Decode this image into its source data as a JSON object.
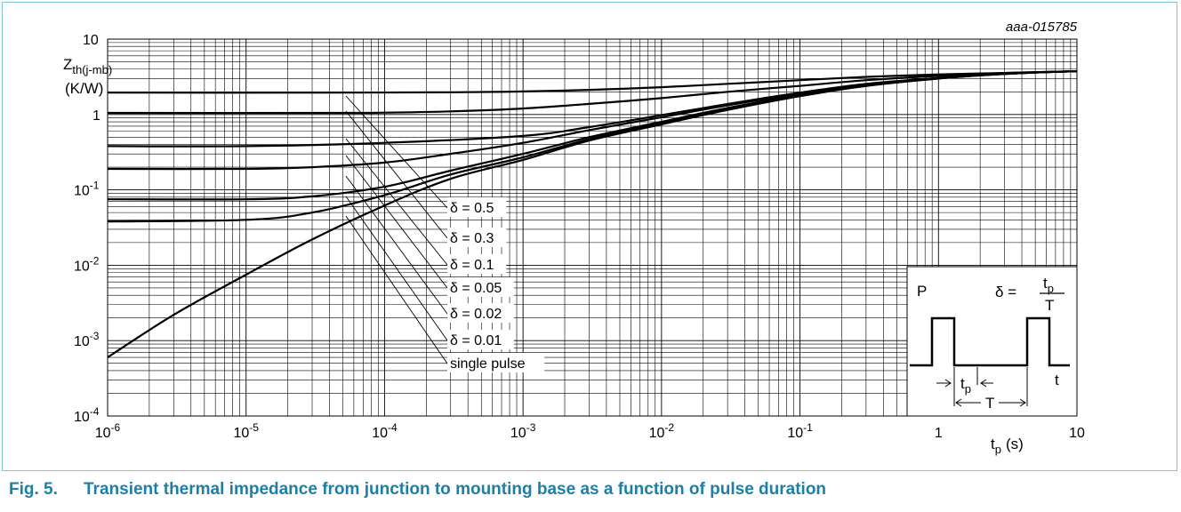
{
  "caption": {
    "figure_number": "Fig. 5.",
    "text": "Transient thermal impedance from junction to mounting base as a function of pulse duration"
  },
  "chart_data": {
    "type": "line",
    "code": "aaa-015785",
    "ylabel_main": "Z",
    "ylabel_sub": "th(j-mb)",
    "ylabel_unit": "(K/W)",
    "xlabel_main": "t",
    "xlabel_sub": "p",
    "xlabel_unit": "(s)",
    "x_scale": "log",
    "y_scale": "log",
    "xlim": [
      1e-06,
      10
    ],
    "ylim": [
      0.0001,
      10
    ],
    "grid": true,
    "x_ticks": [
      {
        "mant": "10",
        "exp": "-6"
      },
      {
        "mant": "10",
        "exp": "-5"
      },
      {
        "mant": "10",
        "exp": "-4"
      },
      {
        "mant": "10",
        "exp": "-3"
      },
      {
        "mant": "10",
        "exp": "-2"
      },
      {
        "mant": "10",
        "exp": "-1"
      },
      {
        "mant": "1",
        "exp": ""
      },
      {
        "mant": "10",
        "exp": ""
      }
    ],
    "y_ticks": [
      {
        "mant": "10",
        "exp": "-4"
      },
      {
        "mant": "10",
        "exp": "-3"
      },
      {
        "mant": "10",
        "exp": "-2"
      },
      {
        "mant": "10",
        "exp": "-1"
      },
      {
        "mant": "1",
        "exp": ""
      },
      {
        "mant": "10",
        "exp": ""
      }
    ],
    "series": [
      {
        "name": "δ = 0.5",
        "x": [
          1e-06,
          5e-05,
          0.0003,
          0.001,
          0.003,
          0.01,
          0.03,
          0.1,
          0.3,
          1,
          3,
          10
        ],
        "y": [
          1.95,
          1.95,
          1.97,
          2.02,
          2.12,
          2.3,
          2.55,
          2.85,
          3.15,
          3.4,
          3.55,
          3.75
        ]
      },
      {
        "name": "δ = 0.3",
        "x": [
          1e-06,
          5e-05,
          0.0001,
          0.0003,
          0.001,
          0.003,
          0.01,
          0.03,
          0.1,
          0.3,
          1,
          3,
          10
        ],
        "y": [
          1.05,
          1.05,
          1.06,
          1.1,
          1.2,
          1.38,
          1.65,
          2.0,
          2.4,
          2.85,
          3.25,
          3.55,
          3.75
        ]
      },
      {
        "name": "δ = 0.1",
        "x": [
          1e-06,
          1e-05,
          0.0001,
          0.001,
          0.003,
          0.01,
          0.03,
          0.1,
          0.3,
          1,
          3,
          10
        ],
        "y": [
          0.38,
          0.38,
          0.42,
          0.52,
          0.68,
          0.98,
          1.38,
          1.95,
          2.55,
          3.05,
          3.5,
          3.75
        ]
      },
      {
        "name": "δ = 0.05",
        "x": [
          1e-06,
          1e-05,
          3e-05,
          0.0001,
          0.0003,
          0.001,
          0.003,
          0.01,
          0.03,
          0.1,
          0.3,
          1,
          3,
          10
        ],
        "y": [
          0.19,
          0.19,
          0.2,
          0.23,
          0.3,
          0.42,
          0.62,
          0.92,
          1.32,
          1.9,
          2.5,
          3.05,
          3.5,
          3.75
        ]
      },
      {
        "name": "δ = 0.02",
        "x": [
          1e-06,
          1e-05,
          3e-05,
          0.0001,
          0.0003,
          0.001,
          0.003,
          0.01,
          0.03,
          0.1,
          0.3,
          1,
          3,
          10
        ],
        "y": [
          0.075,
          0.075,
          0.082,
          0.11,
          0.18,
          0.3,
          0.5,
          0.8,
          1.22,
          1.82,
          2.45,
          3.0,
          3.45,
          3.75
        ]
      },
      {
        "name": "δ = 0.01",
        "x": [
          1e-06,
          1e-05,
          3e-05,
          0.0001,
          0.0003,
          0.001,
          0.003,
          0.01,
          0.03,
          0.1,
          0.3,
          1,
          3,
          10
        ],
        "y": [
          0.038,
          0.04,
          0.05,
          0.085,
          0.16,
          0.27,
          0.47,
          0.76,
          1.18,
          1.8,
          2.4,
          3.0,
          3.45,
          3.75
        ]
      },
      {
        "name": "single pulse",
        "x": [
          1e-06,
          3e-06,
          1e-05,
          3e-05,
          0.0001,
          0.0003,
          0.001,
          0.003,
          0.01,
          0.03,
          0.1,
          0.3,
          1,
          3,
          10
        ],
        "y": [
          0.0006,
          0.0022,
          0.0075,
          0.022,
          0.062,
          0.14,
          0.25,
          0.45,
          0.74,
          1.15,
          1.75,
          2.4,
          3.0,
          3.45,
          3.75
        ]
      }
    ],
    "inset": {
      "p_label": "P",
      "t_label": "t",
      "tp_main": "t",
      "tp_sub": "p",
      "period_label": "T",
      "duty_formula": "δ =",
      "duty_num_main": "t",
      "duty_num_sub": "p",
      "duty_den": "T"
    }
  }
}
